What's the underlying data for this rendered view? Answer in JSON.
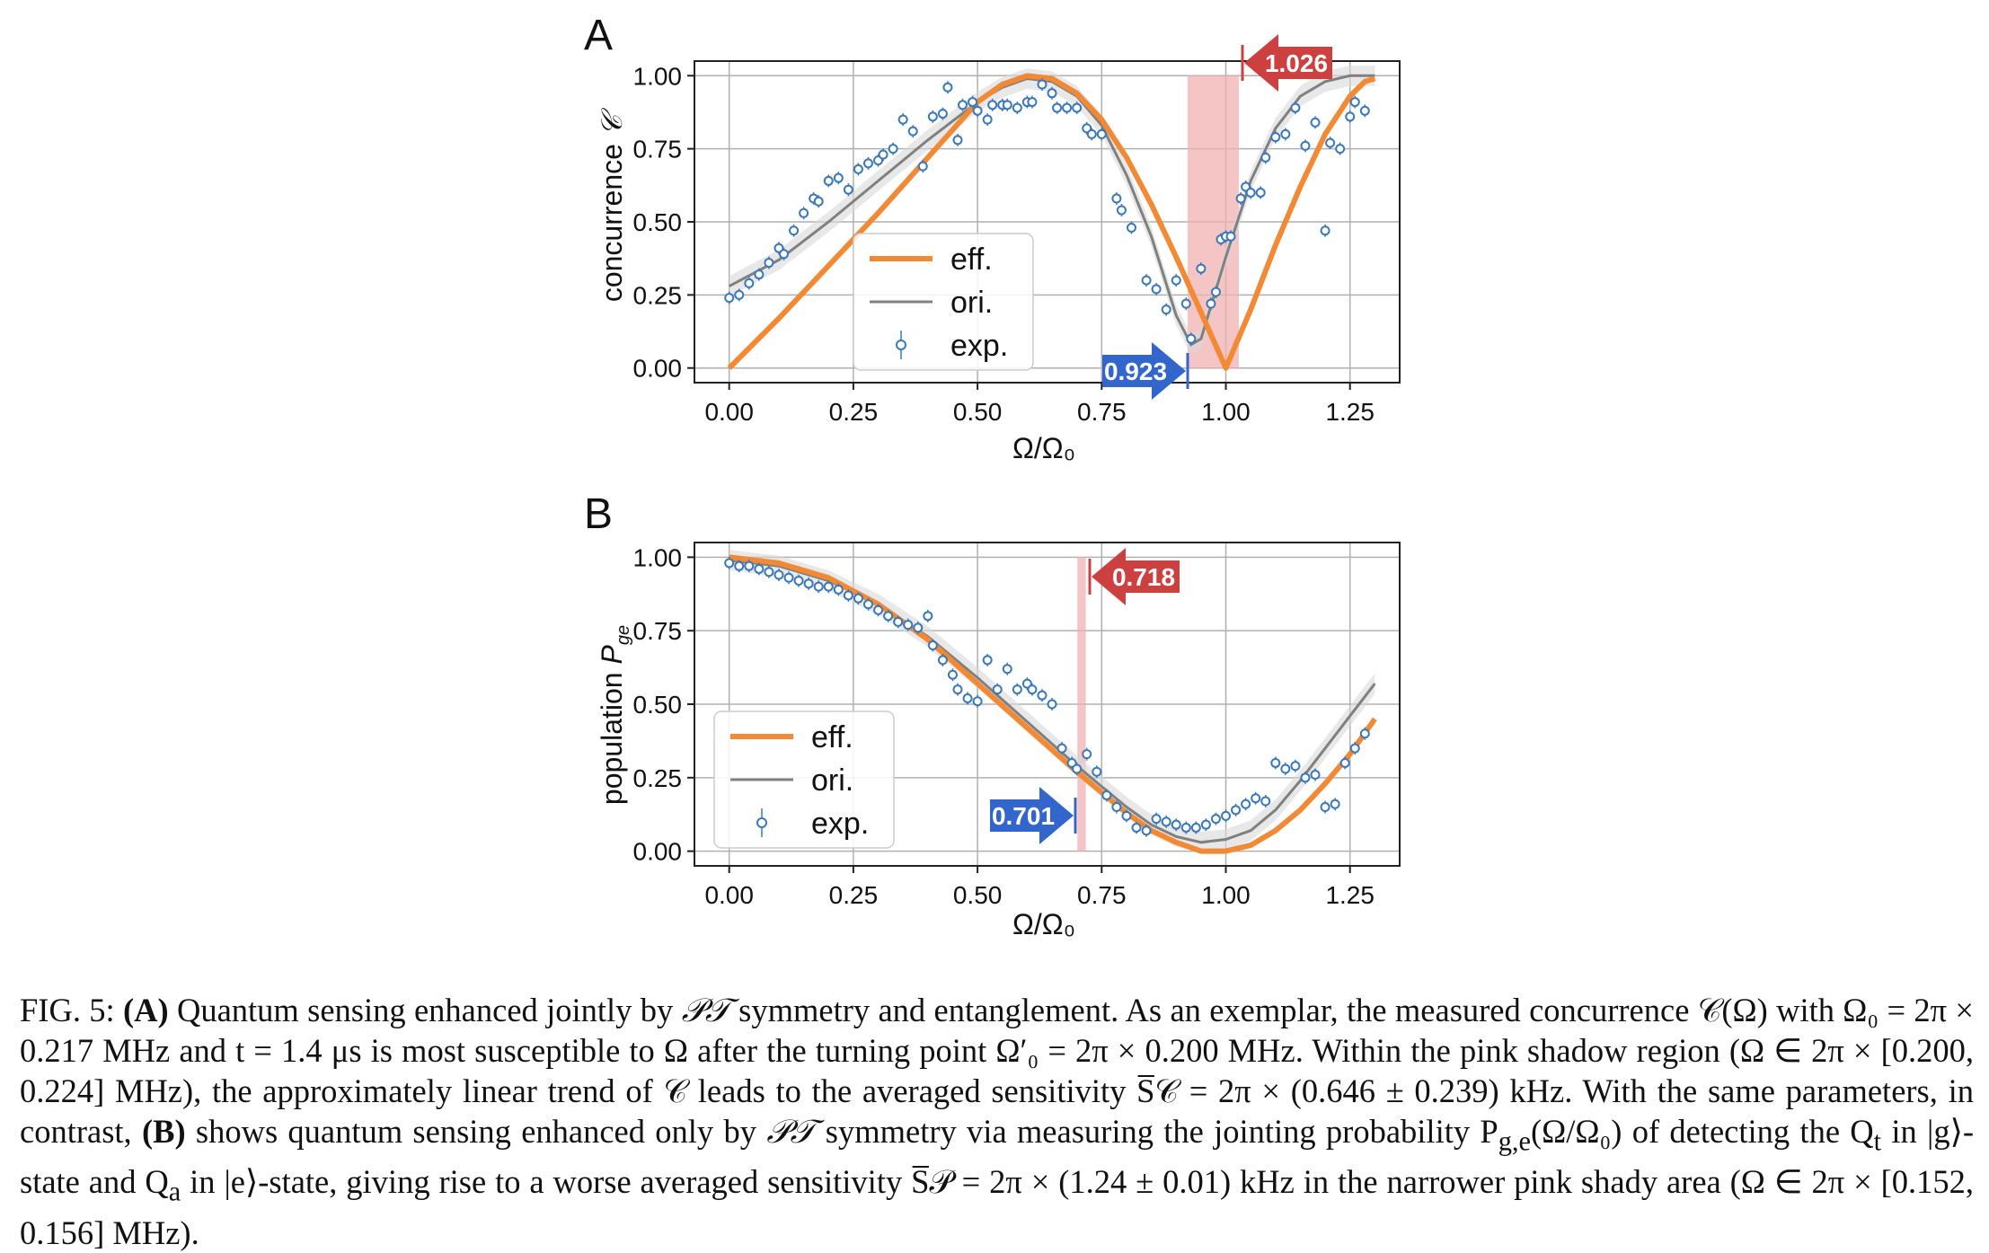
{
  "figure": {
    "panels": [
      {
        "id": "A",
        "label": "A",
        "ylabel": "concurrence",
        "ylabel_symbol": "𝒞",
        "xlabel": "Ω/Ω₀",
        "xticks": [
          "0.00",
          "0.25",
          "0.50",
          "0.75",
          "1.00",
          "1.25"
        ],
        "yticks": [
          "0.00",
          "0.25",
          "0.50",
          "0.75",
          "1.00"
        ],
        "legend": [
          "eff.",
          "ori.",
          "exp."
        ],
        "left_marker": "0.923",
        "right_marker": "1.026"
      },
      {
        "id": "B",
        "label": "B",
        "ylabel": "population",
        "ylabel_symbol": "P",
        "ylabel_sub": "ge",
        "xlabel": "Ω/Ω₀",
        "xticks": [
          "0.00",
          "0.25",
          "0.50",
          "0.75",
          "1.00",
          "1.25"
        ],
        "yticks": [
          "0.00",
          "0.25",
          "0.50",
          "0.75",
          "1.00"
        ],
        "legend": [
          "eff.",
          "ori.",
          "exp."
        ],
        "left_marker": "0.701",
        "right_marker": "0.718"
      }
    ]
  },
  "colors": {
    "eff": "#f28a35",
    "ori": "#808080",
    "exp": "#3a78b8",
    "shade": "#f2b0b0",
    "marker_red": "#cc4040",
    "marker_blue": "#3366cc"
  },
  "chart_data": [
    {
      "type": "line",
      "panel": "A",
      "xlabel": "Ω/Ω₀",
      "ylabel": "concurrence 𝒞",
      "xlim": [
        -0.07,
        1.35
      ],
      "ylim": [
        -0.05,
        1.05
      ],
      "grid": true,
      "legend_position": "lower-left",
      "shaded_region": [
        0.923,
        1.026
      ],
      "series": [
        {
          "name": "eff.",
          "kind": "line",
          "x": [
            0.0,
            0.1,
            0.2,
            0.3,
            0.4,
            0.5,
            0.55,
            0.6,
            0.65,
            0.7,
            0.75,
            0.8,
            0.85,
            0.9,
            0.95,
            1.0,
            1.05,
            1.1,
            1.15,
            1.2,
            1.25,
            1.28,
            1.3
          ],
          "y": [
            0.0,
            0.17,
            0.35,
            0.53,
            0.72,
            0.91,
            0.97,
            1.0,
            0.99,
            0.94,
            0.85,
            0.72,
            0.56,
            0.38,
            0.19,
            0.0,
            0.2,
            0.42,
            0.62,
            0.8,
            0.93,
            0.98,
            0.99
          ]
        },
        {
          "name": "ori.",
          "kind": "line",
          "x": [
            0.0,
            0.1,
            0.2,
            0.3,
            0.4,
            0.5,
            0.55,
            0.6,
            0.65,
            0.7,
            0.75,
            0.8,
            0.85,
            0.9,
            0.93,
            0.95,
            1.0,
            1.05,
            1.1,
            1.15,
            1.2,
            1.25,
            1.3
          ],
          "y": [
            0.28,
            0.37,
            0.5,
            0.64,
            0.78,
            0.91,
            0.96,
            0.99,
            0.98,
            0.93,
            0.83,
            0.66,
            0.45,
            0.18,
            0.08,
            0.1,
            0.38,
            0.64,
            0.82,
            0.93,
            0.98,
            1.0,
            1.0
          ]
        },
        {
          "name": "exp.",
          "kind": "scatter",
          "x": [
            0.0,
            0.02,
            0.04,
            0.06,
            0.08,
            0.1,
            0.11,
            0.13,
            0.15,
            0.17,
            0.18,
            0.2,
            0.22,
            0.24,
            0.26,
            0.28,
            0.3,
            0.31,
            0.33,
            0.35,
            0.37,
            0.39,
            0.41,
            0.43,
            0.44,
            0.46,
            0.47,
            0.49,
            0.5,
            0.52,
            0.53,
            0.55,
            0.56,
            0.58,
            0.6,
            0.61,
            0.63,
            0.65,
            0.66,
            0.68,
            0.7,
            0.72,
            0.73,
            0.75,
            0.78,
            0.79,
            0.81,
            0.84,
            0.86,
            0.88,
            0.9,
            0.92,
            0.93,
            0.95,
            0.97,
            0.98,
            0.99,
            1.0,
            1.01,
            1.03,
            1.04,
            1.05,
            1.07,
            1.08,
            1.1,
            1.12,
            1.14,
            1.16,
            1.18,
            1.2,
            1.21,
            1.23,
            1.25,
            1.26,
            1.28
          ],
          "y": [
            0.24,
            0.25,
            0.29,
            0.32,
            0.36,
            0.41,
            0.39,
            0.47,
            0.53,
            0.58,
            0.57,
            0.64,
            0.65,
            0.61,
            0.68,
            0.7,
            0.71,
            0.73,
            0.75,
            0.85,
            0.81,
            0.69,
            0.86,
            0.87,
            0.96,
            0.78,
            0.9,
            0.91,
            0.88,
            0.85,
            0.9,
            0.9,
            0.9,
            0.89,
            0.91,
            0.91,
            0.97,
            0.94,
            0.89,
            0.89,
            0.89,
            0.82,
            0.8,
            0.8,
            0.58,
            0.54,
            0.48,
            0.3,
            0.27,
            0.2,
            0.3,
            0.22,
            0.1,
            0.34,
            0.22,
            0.26,
            0.44,
            0.45,
            0.45,
            0.58,
            0.62,
            0.6,
            0.6,
            0.72,
            0.79,
            0.8,
            0.89,
            0.76,
            0.84,
            0.47,
            0.77,
            0.75,
            0.86,
            0.91,
            0.88
          ]
        }
      ]
    },
    {
      "type": "line",
      "panel": "B",
      "xlabel": "Ω/Ω₀",
      "ylabel": "population P_ge",
      "xlim": [
        -0.07,
        1.35
      ],
      "ylim": [
        -0.05,
        1.05
      ],
      "grid": true,
      "legend_position": "lower-left",
      "shaded_region": [
        0.701,
        0.718
      ],
      "series": [
        {
          "name": "eff.",
          "kind": "line",
          "x": [
            0.0,
            0.1,
            0.2,
            0.3,
            0.4,
            0.5,
            0.6,
            0.7,
            0.75,
            0.8,
            0.85,
            0.9,
            0.95,
            1.0,
            1.05,
            1.1,
            1.15,
            1.2,
            1.25,
            1.3
          ],
          "y": [
            1.0,
            0.98,
            0.93,
            0.84,
            0.72,
            0.57,
            0.42,
            0.27,
            0.2,
            0.13,
            0.07,
            0.03,
            0.0,
            0.0,
            0.02,
            0.07,
            0.14,
            0.23,
            0.33,
            0.45
          ]
        },
        {
          "name": "ori.",
          "kind": "line",
          "x": [
            0.0,
            0.1,
            0.2,
            0.3,
            0.4,
            0.5,
            0.6,
            0.7,
            0.75,
            0.8,
            0.85,
            0.9,
            0.95,
            1.0,
            1.05,
            1.1,
            1.15,
            1.2,
            1.25,
            1.3
          ],
          "y": [
            0.99,
            0.97,
            0.92,
            0.84,
            0.73,
            0.59,
            0.44,
            0.29,
            0.22,
            0.15,
            0.09,
            0.05,
            0.03,
            0.04,
            0.07,
            0.14,
            0.24,
            0.35,
            0.46,
            0.57
          ]
        },
        {
          "name": "exp.",
          "kind": "scatter",
          "x": [
            0.0,
            0.02,
            0.04,
            0.06,
            0.08,
            0.1,
            0.12,
            0.14,
            0.16,
            0.18,
            0.2,
            0.22,
            0.24,
            0.26,
            0.28,
            0.3,
            0.32,
            0.34,
            0.36,
            0.38,
            0.4,
            0.41,
            0.43,
            0.45,
            0.46,
            0.48,
            0.5,
            0.52,
            0.54,
            0.56,
            0.58,
            0.6,
            0.61,
            0.63,
            0.65,
            0.67,
            0.69,
            0.7,
            0.72,
            0.74,
            0.76,
            0.78,
            0.8,
            0.82,
            0.84,
            0.86,
            0.88,
            0.9,
            0.92,
            0.94,
            0.96,
            0.98,
            1.0,
            1.02,
            1.04,
            1.06,
            1.08,
            1.1,
            1.12,
            1.14,
            1.16,
            1.18,
            1.2,
            1.22,
            1.24,
            1.26,
            1.28
          ],
          "y": [
            0.98,
            0.97,
            0.97,
            0.96,
            0.95,
            0.94,
            0.93,
            0.92,
            0.91,
            0.9,
            0.9,
            0.89,
            0.87,
            0.86,
            0.84,
            0.82,
            0.8,
            0.78,
            0.77,
            0.76,
            0.8,
            0.7,
            0.65,
            0.6,
            0.55,
            0.52,
            0.51,
            0.65,
            0.55,
            0.62,
            0.55,
            0.57,
            0.55,
            0.53,
            0.5,
            0.35,
            0.3,
            0.28,
            0.33,
            0.27,
            0.19,
            0.15,
            0.12,
            0.08,
            0.07,
            0.11,
            0.1,
            0.09,
            0.08,
            0.08,
            0.09,
            0.11,
            0.12,
            0.14,
            0.16,
            0.18,
            0.17,
            0.3,
            0.28,
            0.29,
            0.25,
            0.26,
            0.15,
            0.16,
            0.3,
            0.35,
            0.4
          ]
        }
      ]
    }
  ],
  "caption": {
    "fig_label": "FIG. 5:",
    "a_label": "(A)",
    "s1": " Quantum sensing enhanced jointly by ",
    "pt1": "𝒫𝒯",
    "s2": " symmetry and entanglement. As an exemplar, the measured concurrence 𝒞(Ω) with Ω₀ = 2π × 0.217 MHz and t = 1.4 μs is most susceptible to Ω after the turning point Ω′₀ = 2π × 0.200 MHz. Within the pink shadow region (Ω ∈ 2π × [0.200, 0.224] MHz), the approximately linear trend of 𝒞 leads to the averaged sensitivity S̅𝒞 = 2π × (0.646 ± 0.239) kHz. With the same parameters, in contrast, ",
    "b_label": "(B)",
    "s3": " shows quantum sensing enhanced only by ",
    "pt2": "𝒫𝒯",
    "s4": " symmetry via measuring the jointing probability P",
    "sub_ge": "g,e",
    "s5": "(Ω/Ω₀) of detecting the Q",
    "sub_t": "t",
    "s6": " in |g⟩-state and Q",
    "sub_a": "a",
    "s7": " in |e⟩-state, giving rise to a worse averaged sensitivity S̅𝒫 = 2π × (1.24 ± 0.01) kHz in the narrower pink shady area (Ω ∈ 2π × [0.152, 0.156] MHz)."
  }
}
